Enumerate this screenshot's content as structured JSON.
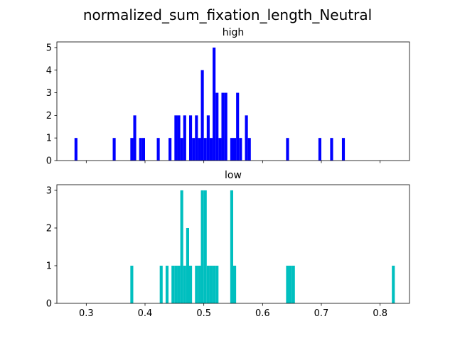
{
  "suptitle": "normalized_sum_fixation_length_Neutral",
  "chart_data": [
    {
      "type": "bar",
      "title": "high",
      "color": "#0000ff",
      "bin_width": 0.005,
      "xlim": [
        0.25,
        0.85
      ],
      "ylim": [
        0,
        5.25
      ],
      "yticks": [
        0,
        1,
        2,
        3,
        4,
        5
      ],
      "bins": [
        {
          "x": 0.28,
          "count": 1
        },
        {
          "x": 0.345,
          "count": 1
        },
        {
          "x": 0.375,
          "count": 1
        },
        {
          "x": 0.38,
          "count": 2
        },
        {
          "x": 0.39,
          "count": 1
        },
        {
          "x": 0.395,
          "count": 1
        },
        {
          "x": 0.42,
          "count": 1
        },
        {
          "x": 0.44,
          "count": 1
        },
        {
          "x": 0.45,
          "count": 2
        },
        {
          "x": 0.455,
          "count": 2
        },
        {
          "x": 0.46,
          "count": 1
        },
        {
          "x": 0.465,
          "count": 2
        },
        {
          "x": 0.475,
          "count": 2
        },
        {
          "x": 0.48,
          "count": 1
        },
        {
          "x": 0.485,
          "count": 2
        },
        {
          "x": 0.49,
          "count": 1
        },
        {
          "x": 0.495,
          "count": 4
        },
        {
          "x": 0.5,
          "count": 1
        },
        {
          "x": 0.505,
          "count": 2
        },
        {
          "x": 0.51,
          "count": 1
        },
        {
          "x": 0.515,
          "count": 5
        },
        {
          "x": 0.52,
          "count": 3
        },
        {
          "x": 0.525,
          "count": 1
        },
        {
          "x": 0.53,
          "count": 3
        },
        {
          "x": 0.535,
          "count": 3
        },
        {
          "x": 0.545,
          "count": 1
        },
        {
          "x": 0.55,
          "count": 1
        },
        {
          "x": 0.555,
          "count": 3
        },
        {
          "x": 0.56,
          "count": 1
        },
        {
          "x": 0.57,
          "count": 2
        },
        {
          "x": 0.575,
          "count": 1
        },
        {
          "x": 0.64,
          "count": 1
        },
        {
          "x": 0.695,
          "count": 1
        },
        {
          "x": 0.715,
          "count": 1
        },
        {
          "x": 0.735,
          "count": 1
        }
      ]
    },
    {
      "type": "bar",
      "title": "low",
      "color": "#00bfbf",
      "bin_width": 0.005,
      "xlim": [
        0.25,
        0.85
      ],
      "ylim": [
        0,
        3.15
      ],
      "yticks": [
        0,
        1,
        2,
        3
      ],
      "xticks": [
        0.3,
        0.4,
        0.5,
        0.6,
        0.7,
        0.8
      ],
      "xtick_labels": [
        "0.3",
        "0.4",
        "0.5",
        "0.6",
        "0.7",
        "0.8"
      ],
      "bins": [
        {
          "x": 0.375,
          "count": 1
        },
        {
          "x": 0.425,
          "count": 1
        },
        {
          "x": 0.435,
          "count": 1
        },
        {
          "x": 0.445,
          "count": 1
        },
        {
          "x": 0.45,
          "count": 1
        },
        {
          "x": 0.455,
          "count": 1
        },
        {
          "x": 0.46,
          "count": 3
        },
        {
          "x": 0.465,
          "count": 1
        },
        {
          "x": 0.47,
          "count": 2
        },
        {
          "x": 0.475,
          "count": 1
        },
        {
          "x": 0.485,
          "count": 1
        },
        {
          "x": 0.49,
          "count": 1
        },
        {
          "x": 0.495,
          "count": 3
        },
        {
          "x": 0.5,
          "count": 3
        },
        {
          "x": 0.505,
          "count": 1
        },
        {
          "x": 0.51,
          "count": 1
        },
        {
          "x": 0.515,
          "count": 1
        },
        {
          "x": 0.52,
          "count": 1
        },
        {
          "x": 0.545,
          "count": 3
        },
        {
          "x": 0.55,
          "count": 1
        },
        {
          "x": 0.64,
          "count": 1
        },
        {
          "x": 0.645,
          "count": 1
        },
        {
          "x": 0.65,
          "count": 1
        },
        {
          "x": 0.82,
          "count": 1
        }
      ]
    }
  ]
}
